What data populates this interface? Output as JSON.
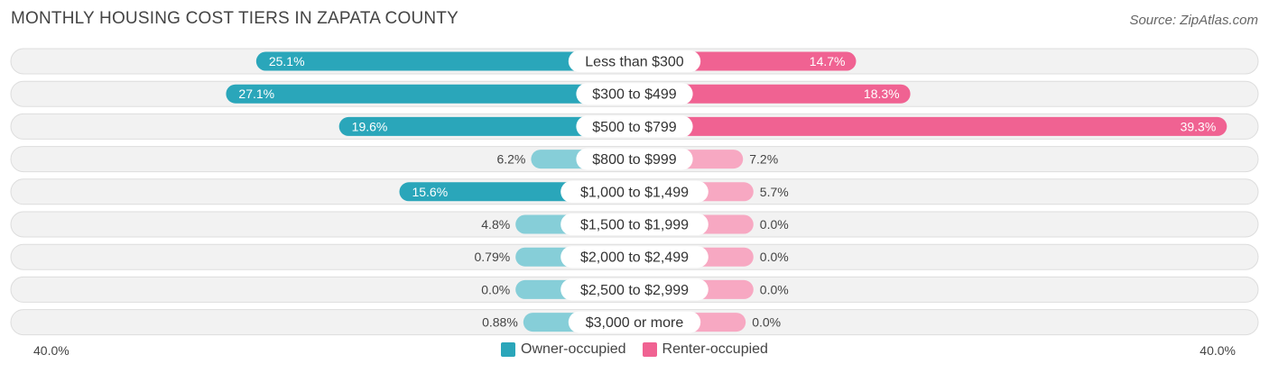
{
  "title": "MONTHLY HOUSING COST TIERS IN ZAPATA COUNTY",
  "source": "Source: ZipAtlas.com",
  "colors": {
    "owner": "#2aa6ba",
    "owner_light": "#86ced8",
    "renter": "#f06292",
    "renter_light": "#f7a8c2",
    "row_bg": "#f2f2f2",
    "row_border": "#dddddd"
  },
  "axis": {
    "left_label": "40.0%",
    "right_label": "40.0%"
  },
  "legend": {
    "owner_label": "Owner-occupied",
    "renter_label": "Renter-occupied"
  },
  "chart_data": {
    "type": "bar",
    "orientation": "horizontal-diverging",
    "title": "MONTHLY HOUSING COST TIERS IN ZAPATA COUNTY",
    "xlim": [
      -40,
      40
    ],
    "categories": [
      "Less than $300",
      "$300 to $499",
      "$500 to $799",
      "$800 to $999",
      "$1,000 to $1,499",
      "$1,500 to $1,999",
      "$2,000 to $2,499",
      "$2,500 to $2,999",
      "$3,000 or more"
    ],
    "series": [
      {
        "name": "Owner-occupied",
        "values": [
          25.1,
          27.1,
          19.6,
          6.2,
          15.6,
          4.8,
          0.79,
          0.0,
          0.88
        ],
        "labels": [
          "25.1%",
          "27.1%",
          "19.6%",
          "6.2%",
          "15.6%",
          "4.8%",
          "0.79%",
          "0.0%",
          "0.88%"
        ]
      },
      {
        "name": "Renter-occupied",
        "values": [
          14.7,
          18.3,
          39.3,
          7.2,
          5.7,
          0.0,
          0.0,
          0.0,
          0.0
        ],
        "labels": [
          "14.7%",
          "18.3%",
          "39.3%",
          "7.2%",
          "5.7%",
          "0.0%",
          "0.0%",
          "0.0%",
          "0.0%"
        ]
      }
    ],
    "legend_position": "bottom-center"
  }
}
